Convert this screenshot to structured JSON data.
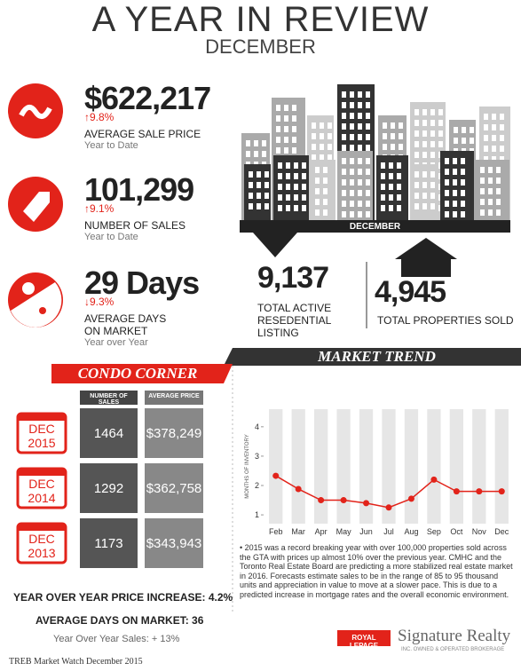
{
  "header": {
    "title": "A YEAR IN REVIEW",
    "subtitle": "DECEMBER"
  },
  "stats": [
    {
      "value": "$622,217",
      "change": "↑9.8%",
      "label": "AVERAGE SALE PRICE",
      "period": "Year to Date"
    },
    {
      "value": "101,299",
      "change": "↑9.1%",
      "label": "NUMBER OF SALES",
      "period": "Year to Date"
    },
    {
      "value": "29 Days",
      "change": "↓9.3%",
      "label": "AVERAGE DAYS ON MARKET",
      "period": "Year over Year"
    }
  ],
  "graphic_label": "DECEMBER",
  "listings": {
    "value": "9,137",
    "label": "TOTAL ACTIVE RESEDENTIAL LISTING"
  },
  "sold": {
    "value": "4,945",
    "label": "TOTAL PROPERTIES SOLD"
  },
  "condo": {
    "title": "CONDO CORNER",
    "columns": [
      "NUMBER OF SALES",
      "AVERAGE PRICE"
    ],
    "rows": [
      {
        "month": "DEC",
        "year": "2015",
        "sales": "1464",
        "price": "$378,249"
      },
      {
        "month": "DEC",
        "year": "2014",
        "sales": "1292",
        "price": "$362,758"
      },
      {
        "month": "DEC",
        "year": "2013",
        "sales": "1173",
        "price": "$343,943"
      }
    ],
    "price_increase": "YEAR OVER YEAR PRICE INCREASE: 4.2%",
    "avg_days": "AVERAGE DAYS ON MARKET: 36",
    "sales_change": "Year Over Year Sales: + 13%"
  },
  "chart_data": {
    "type": "line",
    "title": "MARKET TREND",
    "y_label": "MONTHS OF INVENTORY",
    "categories": [
      "Feb",
      "Mar",
      "Apr",
      "May",
      "Jun",
      "Jul",
      "Aug",
      "Sep",
      "Oct",
      "Nov",
      "Dec"
    ],
    "values": [
      2.33,
      1.88,
      1.5,
      1.5,
      1.4,
      1.25,
      1.55,
      2.2,
      1.8,
      1.8,
      1.8
    ],
    "color": "#e2231a",
    "ylim": [
      0.7,
      4.6
    ],
    "yticks": [
      1,
      2,
      3,
      4
    ]
  },
  "note": "• 2015 was a record breaking year with over 100,000 properties sold across the GTA with prices up almost 10% over the previous year. CMHC and the Toronto Real Estate Board are predicting a more stabilized real estate market in 2016. Forecasts estimate sales to be in the range of 85 to 95 thousand units and appreciation in value to move at a slower pace. This is due to a predicted increase in mortgage rates and the overall economic environment.",
  "footer": {
    "source": "TREB Market Watch December 2015",
    "brand": "ROYAL LEPAGE",
    "company": "Signature Realty",
    "tagline": "INC. OWNED & OPERATED BROKERAGE"
  }
}
